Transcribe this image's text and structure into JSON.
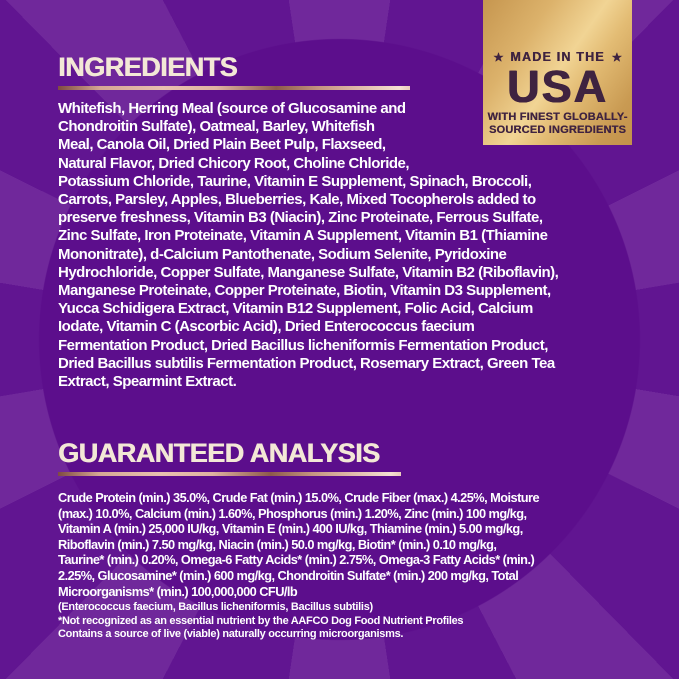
{
  "theme": {
    "colors": {
      "purple-dark": "#5c0e8c",
      "purple-mid": "#611591",
      "purple-ray": "#70289b",
      "heading-cream": "#f3e8d6",
      "body-white": "#ffffff",
      "badge-text": "#3f2340",
      "badge-gold-light": "#f1d494",
      "badge-gold-dark": "#c3924b",
      "rule-rose-dark": "#8d5a4b",
      "rule-rose-light": "#f5e1d3"
    }
  },
  "badge": {
    "star": "★",
    "top_line": "MADE IN THE",
    "main": "USA",
    "sub_line1": "WITH FINEST GLOBALLY-",
    "sub_line2": "SOURCED INGREDIENTS"
  },
  "ingredients": {
    "title": "INGREDIENTS",
    "lines": [
      "Whitefish, Herring Meal (source of Glucosamine and",
      "Chondroitin Sulfate), Oatmeal, Barley, Whitefish",
      "Meal, Canola Oil, Dried Plain Beet Pulp, Flaxseed,",
      "Natural Flavor, Dried Chicory Root, Choline Chloride,",
      "Potassium Chloride, Taurine, Vitamin E Supplement, Spinach, Broccoli,",
      "Carrots, Parsley, Apples, Blueberries, Kale, Mixed Tocopherols added to",
      "preserve freshness, Vitamin B3 (Niacin), Zinc Proteinate, Ferrous Sulfate,",
      "Zinc Sulfate, Iron Proteinate, Vitamin A Supplement, Vitamin B1 (Thiamine",
      "Mononitrate), d-Calcium Pantothenate, Sodium Selenite, Pyridoxine",
      "Hydrochloride, Copper Sulfate, Manganese Sulfate, Vitamin B2 (Riboflavin),",
      "Manganese Proteinate, Copper Proteinate, Biotin, Vitamin D3 Supplement,",
      "Yucca Schidigera Extract, Vitamin B12 Supplement, Folic Acid, Calcium",
      "Iodate, Vitamin C (Ascorbic Acid), Dried Enterococcus faecium",
      "Fermentation Product, Dried Bacillus licheniformis Fermentation Product,",
      "Dried Bacillus subtilis Fermentation Product, Rosemary Extract, Green Tea",
      "Extract, Spearmint Extract."
    ]
  },
  "analysis": {
    "title": "GUARANTEED ANALYSIS",
    "lines": [
      "Crude Protein (min.) 35.0%, Crude Fat (min.) 15.0%, Crude Fiber (max.) 4.25%, Moisture",
      "(max.) 10.0%, Calcium (min.) 1.60%, Phosphorus (min.) 1.20%, Zinc (min.) 100 mg/kg,",
      "Vitamin A (min.) 25,000 IU/kg, Vitamin E (min.) 400 IU/kg, Thiamine (min.) 5.00 mg/kg,",
      "Riboflavin (min.) 7.50 mg/kg, Niacin (min.) 50.0 mg/kg, Biotin* (min.) 0.10 mg/kg,",
      "Taurine* (min.) 0.20%, Omega-6 Fatty Acids* (min.) 2.75%, Omega-3 Fatty Acids* (min.)",
      "2.25%, Glucosamine* (min.) 600 mg/kg, Chondroitin Sulfate* (min.) 200 mg/kg, Total",
      "Microorganisms* (min.) 100,000,000 CFU/lb"
    ],
    "footnotes": [
      "(Enterococcus faecium, Bacillus licheniformis, Bacillus subtilis)",
      "*Not recognized as an essential nutrient by the AAFCO Dog Food Nutrient Profiles",
      "Contains a source of live (viable) naturally occurring microorganisms."
    ]
  }
}
